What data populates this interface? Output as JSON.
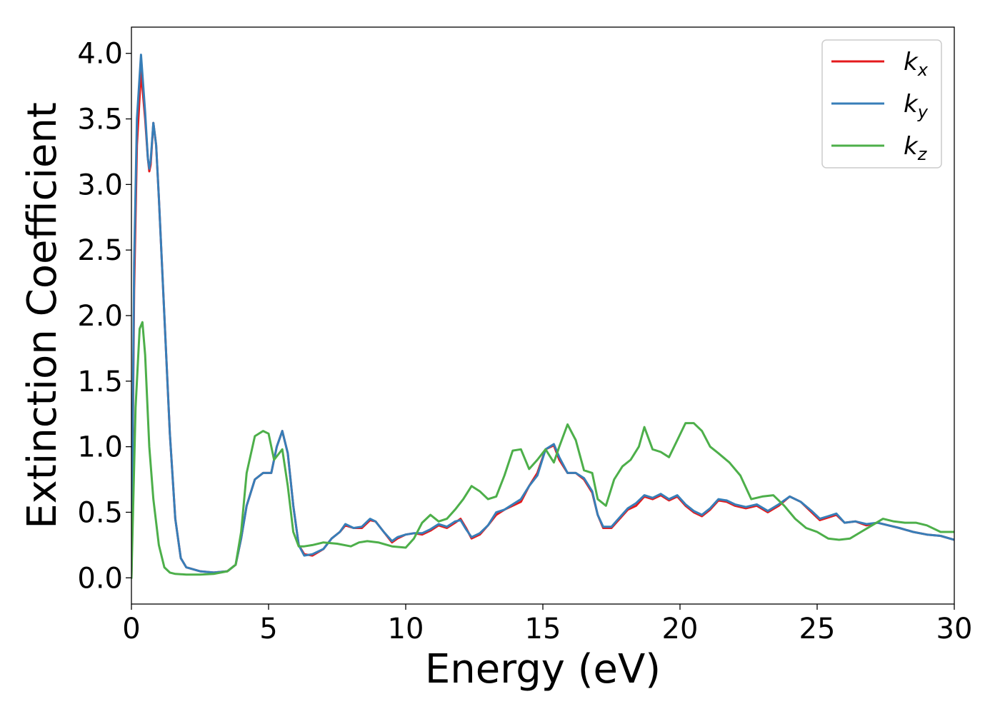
{
  "chart_data": {
    "type": "line",
    "title": "",
    "xlabel": "Energy (eV)",
    "ylabel": "Extinction Coefficient",
    "xlim": [
      0,
      30
    ],
    "ylim": [
      -0.2,
      4.2
    ],
    "xticks": [
      0,
      5,
      10,
      15,
      20,
      25,
      30
    ],
    "xtick_labels": [
      "0",
      "5",
      "10",
      "15",
      "20",
      "25",
      "30"
    ],
    "yticks": [
      0.0,
      0.5,
      1.0,
      1.5,
      2.0,
      2.5,
      3.0,
      3.5,
      4.0
    ],
    "ytick_labels": [
      "0.0",
      "0.5",
      "1.0",
      "1.5",
      "2.0",
      "2.5",
      "3.0",
      "3.5",
      "4.0"
    ],
    "grid": false,
    "legend_position": "top-right",
    "series": [
      {
        "name": "k",
        "subscript": "x",
        "color": "#e41a1c",
        "x": [
          0,
          0.1,
          0.2,
          0.35,
          0.5,
          0.6,
          0.65,
          0.7,
          0.8,
          0.9,
          1.0,
          1.2,
          1.4,
          1.6,
          1.8,
          2.0,
          2.5,
          3.0,
          3.5,
          3.8,
          4.0,
          4.2,
          4.5,
          4.8,
          5.1,
          5.3,
          5.5,
          5.7,
          5.9,
          6.1,
          6.3,
          6.6,
          7.0,
          7.3,
          7.6,
          7.8,
          8.1,
          8.4,
          8.7,
          8.9,
          9.2,
          9.5,
          9.7,
          10.0,
          10.3,
          10.6,
          10.9,
          11.2,
          11.5,
          11.8,
          12.0,
          12.2,
          12.4,
          12.7,
          13.0,
          13.3,
          13.6,
          13.9,
          14.2,
          14.5,
          14.8,
          15.1,
          15.4,
          15.6,
          15.9,
          16.2,
          16.5,
          16.8,
          17.0,
          17.2,
          17.5,
          17.8,
          18.1,
          18.4,
          18.7,
          19.0,
          19.3,
          19.6,
          19.9,
          20.2,
          20.5,
          20.8,
          21.1,
          21.4,
          21.7,
          22.0,
          22.4,
          22.8,
          23.2,
          23.6,
          24.0,
          24.4,
          24.8,
          25.1,
          25.4,
          25.7,
          26.0,
          26.4,
          26.8,
          27.2,
          27.6,
          28.0,
          28.5,
          29.0,
          29.5,
          30.0
        ],
        "y": [
          0.0,
          2.2,
          3.3,
          3.86,
          3.5,
          3.2,
          3.1,
          3.15,
          3.47,
          3.3,
          2.9,
          2.0,
          1.1,
          0.45,
          0.15,
          0.08,
          0.05,
          0.04,
          0.05,
          0.1,
          0.3,
          0.55,
          0.75,
          0.8,
          0.8,
          1.0,
          1.12,
          0.95,
          0.55,
          0.25,
          0.18,
          0.17,
          0.22,
          0.3,
          0.35,
          0.4,
          0.38,
          0.38,
          0.44,
          0.43,
          0.35,
          0.27,
          0.3,
          0.33,
          0.34,
          0.33,
          0.36,
          0.4,
          0.38,
          0.42,
          0.45,
          0.38,
          0.3,
          0.33,
          0.4,
          0.48,
          0.52,
          0.55,
          0.58,
          0.7,
          0.8,
          0.98,
          1.01,
          0.9,
          0.8,
          0.8,
          0.75,
          0.65,
          0.48,
          0.38,
          0.38,
          0.45,
          0.52,
          0.55,
          0.62,
          0.6,
          0.63,
          0.59,
          0.62,
          0.55,
          0.5,
          0.47,
          0.52,
          0.59,
          0.58,
          0.55,
          0.53,
          0.55,
          0.5,
          0.55,
          0.62,
          0.58,
          0.5,
          0.44,
          0.46,
          0.48,
          0.42,
          0.43,
          0.4,
          0.42,
          0.4,
          0.38,
          0.35,
          0.33,
          0.32,
          0.29
        ]
      },
      {
        "name": "k",
        "subscript": "y",
        "color": "#377eb8",
        "x": [
          0,
          0.1,
          0.2,
          0.35,
          0.5,
          0.6,
          0.65,
          0.7,
          0.8,
          0.9,
          1.0,
          1.2,
          1.4,
          1.6,
          1.8,
          2.0,
          2.5,
          3.0,
          3.5,
          3.8,
          4.0,
          4.2,
          4.5,
          4.8,
          5.1,
          5.3,
          5.5,
          5.7,
          5.9,
          6.1,
          6.3,
          6.6,
          7.0,
          7.3,
          7.6,
          7.8,
          8.1,
          8.4,
          8.7,
          8.9,
          9.2,
          9.5,
          9.7,
          10.0,
          10.3,
          10.6,
          10.9,
          11.2,
          11.5,
          11.8,
          12.0,
          12.2,
          12.4,
          12.7,
          13.0,
          13.3,
          13.6,
          13.9,
          14.2,
          14.5,
          14.8,
          15.1,
          15.4,
          15.6,
          15.9,
          16.2,
          16.5,
          16.8,
          17.0,
          17.2,
          17.5,
          17.8,
          18.1,
          18.4,
          18.7,
          19.0,
          19.3,
          19.6,
          19.9,
          20.2,
          20.5,
          20.8,
          21.1,
          21.4,
          21.7,
          22.0,
          22.4,
          22.8,
          23.2,
          23.6,
          24.0,
          24.4,
          24.8,
          25.1,
          25.4,
          25.7,
          26.0,
          26.4,
          26.8,
          27.2,
          27.6,
          28.0,
          28.5,
          29.0,
          29.5,
          30.0
        ],
        "y": [
          0.0,
          2.4,
          3.5,
          3.99,
          3.55,
          3.2,
          3.12,
          3.18,
          3.47,
          3.3,
          2.9,
          2.0,
          1.1,
          0.45,
          0.15,
          0.08,
          0.05,
          0.04,
          0.05,
          0.1,
          0.3,
          0.55,
          0.75,
          0.8,
          0.8,
          1.0,
          1.12,
          0.95,
          0.55,
          0.25,
          0.17,
          0.18,
          0.22,
          0.3,
          0.35,
          0.41,
          0.38,
          0.39,
          0.45,
          0.43,
          0.35,
          0.28,
          0.31,
          0.33,
          0.34,
          0.34,
          0.37,
          0.41,
          0.39,
          0.43,
          0.44,
          0.37,
          0.31,
          0.34,
          0.4,
          0.5,
          0.52,
          0.56,
          0.6,
          0.7,
          0.78,
          0.98,
          1.02,
          0.92,
          0.8,
          0.8,
          0.76,
          0.66,
          0.48,
          0.39,
          0.39,
          0.46,
          0.53,
          0.57,
          0.63,
          0.61,
          0.64,
          0.6,
          0.63,
          0.56,
          0.51,
          0.48,
          0.53,
          0.6,
          0.59,
          0.56,
          0.54,
          0.56,
          0.51,
          0.56,
          0.62,
          0.58,
          0.51,
          0.45,
          0.47,
          0.49,
          0.42,
          0.43,
          0.41,
          0.42,
          0.4,
          0.38,
          0.35,
          0.33,
          0.32,
          0.29
        ]
      },
      {
        "name": "k",
        "subscript": "z",
        "color": "#4daf4a",
        "x": [
          0,
          0.15,
          0.3,
          0.4,
          0.5,
          0.65,
          0.8,
          1.0,
          1.2,
          1.4,
          1.6,
          2.0,
          2.5,
          3.0,
          3.5,
          3.8,
          4.0,
          4.2,
          4.5,
          4.8,
          5.0,
          5.2,
          5.5,
          5.7,
          5.9,
          6.1,
          6.3,
          6.6,
          7.0,
          7.5,
          8.0,
          8.3,
          8.6,
          9.0,
          9.5,
          10.0,
          10.3,
          10.6,
          10.9,
          11.2,
          11.5,
          11.8,
          12.1,
          12.4,
          12.7,
          13.0,
          13.3,
          13.6,
          13.9,
          14.2,
          14.5,
          14.8,
          15.1,
          15.4,
          15.6,
          15.9,
          16.2,
          16.5,
          16.8,
          17.0,
          17.3,
          17.6,
          17.9,
          18.2,
          18.5,
          18.7,
          19.0,
          19.3,
          19.6,
          19.9,
          20.2,
          20.5,
          20.8,
          21.1,
          21.4,
          21.8,
          22.2,
          22.6,
          23.0,
          23.4,
          23.8,
          24.2,
          24.6,
          25.0,
          25.4,
          25.8,
          26.2,
          26.6,
          27.0,
          27.4,
          27.8,
          28.2,
          28.6,
          29.0,
          29.5,
          30.0
        ],
        "y": [
          0.0,
          1.3,
          1.9,
          1.95,
          1.7,
          1.0,
          0.6,
          0.25,
          0.08,
          0.04,
          0.03,
          0.025,
          0.025,
          0.03,
          0.05,
          0.1,
          0.35,
          0.8,
          1.08,
          1.12,
          1.1,
          0.9,
          0.98,
          0.7,
          0.35,
          0.24,
          0.24,
          0.25,
          0.27,
          0.26,
          0.24,
          0.27,
          0.28,
          0.27,
          0.24,
          0.23,
          0.3,
          0.42,
          0.48,
          0.43,
          0.45,
          0.52,
          0.6,
          0.7,
          0.66,
          0.6,
          0.62,
          0.78,
          0.97,
          0.98,
          0.83,
          0.9,
          0.98,
          0.88,
          1.0,
          1.17,
          1.05,
          0.82,
          0.8,
          0.6,
          0.55,
          0.75,
          0.85,
          0.9,
          1.0,
          1.15,
          0.98,
          0.96,
          0.92,
          1.05,
          1.18,
          1.18,
          1.12,
          1.0,
          0.95,
          0.88,
          0.78,
          0.6,
          0.62,
          0.63,
          0.55,
          0.45,
          0.38,
          0.35,
          0.3,
          0.29,
          0.3,
          0.35,
          0.4,
          0.45,
          0.43,
          0.42,
          0.42,
          0.4,
          0.35,
          0.35
        ]
      }
    ]
  }
}
